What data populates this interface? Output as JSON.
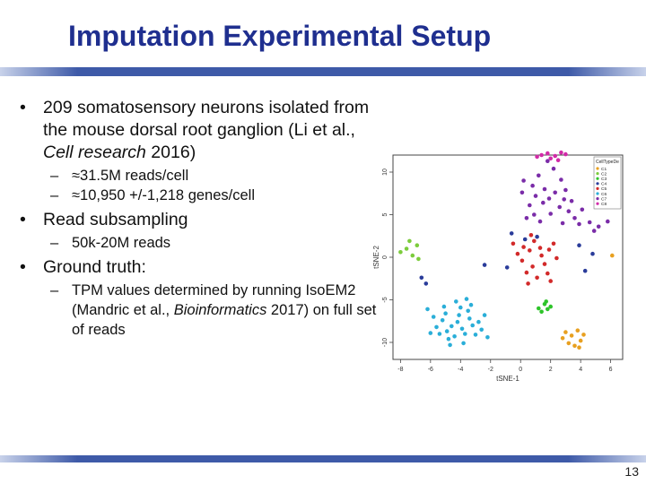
{
  "slide": {
    "title": "Imputation Experimental Setup",
    "page_number": "13"
  },
  "bullets": [
    {
      "text_parts": [
        "209 somatosensory neurons isolated from the mouse dorsal root ganglion (Li et al., ",
        "Cell research",
        " 2016)"
      ],
      "sub": [
        "≈31.5M reads/cell",
        "≈10,950 +/-1,218 genes/cell"
      ]
    },
    {
      "text_parts": [
        "Read subsampling"
      ],
      "sub": [
        "50k-20M reads"
      ]
    },
    {
      "text_parts": [
        "Ground truth:"
      ],
      "sub_parts": [
        "TPM values determined by running IsoEM2 (Mandric et al., ",
        "Bioinformatics",
        " 2017) on full set of reads"
      ]
    }
  ],
  "chart_data": {
    "type": "scatter",
    "xlabel": "tSNE-1",
    "ylabel": "tSNE-2",
    "xlim": [
      -8.5,
      6.8
    ],
    "ylim": [
      -12,
      12
    ],
    "xticks": [
      "-8",
      "-6",
      "-4",
      "-2",
      "0",
      "2",
      "4",
      "6"
    ],
    "yticks": [
      "10",
      "5",
      "0",
      "-5",
      "-10"
    ],
    "legend_title": "CellTypeDe",
    "legend_position": "top-right",
    "series": [
      {
        "name": "C1",
        "color": "#e8a020",
        "points": [
          [
            3.4,
            -9.2
          ],
          [
            3.8,
            -8.6
          ],
          [
            4.0,
            -9.8
          ],
          [
            3.2,
            -10.1
          ],
          [
            2.8,
            -9.5
          ],
          [
            3.6,
            -10.4
          ],
          [
            4.2,
            -9.1
          ],
          [
            3.0,
            -8.8
          ],
          [
            3.9,
            -10.6
          ],
          [
            6.1,
            0.2
          ]
        ]
      },
      {
        "name": "C2",
        "color": "#7ccc3c",
        "points": [
          [
            -7.6,
            1.0
          ],
          [
            -7.2,
            0.2
          ],
          [
            -6.9,
            1.4
          ],
          [
            -8.0,
            0.6
          ],
          [
            -7.4,
            1.9
          ],
          [
            -6.8,
            -0.2
          ]
        ]
      },
      {
        "name": "C3",
        "color": "#2ec42a",
        "points": [
          [
            1.6,
            -5.5
          ],
          [
            1.8,
            -6.1
          ],
          [
            1.4,
            -6.4
          ],
          [
            2.0,
            -5.8
          ],
          [
            1.7,
            -5.2
          ],
          [
            1.2,
            -6.0
          ]
        ]
      },
      {
        "name": "C4",
        "color": "#2a3c9a",
        "points": [
          [
            -0.6,
            2.8
          ],
          [
            -0.9,
            -1.2
          ],
          [
            -2.4,
            -0.9
          ],
          [
            3.9,
            1.4
          ],
          [
            4.3,
            -1.6
          ],
          [
            4.8,
            0.4
          ],
          [
            0.3,
            2.1
          ],
          [
            1.1,
            2.4
          ],
          [
            -6.3,
            -3.1
          ],
          [
            -6.6,
            -2.4
          ]
        ]
      },
      {
        "name": "C5",
        "color": "#d22a2a",
        "points": [
          [
            0.2,
            1.2
          ],
          [
            0.6,
            0.8
          ],
          [
            0.9,
            1.9
          ],
          [
            1.4,
            0.2
          ],
          [
            0.1,
            -0.4
          ],
          [
            0.8,
            -1.1
          ],
          [
            1.6,
            -0.8
          ],
          [
            1.9,
            0.9
          ],
          [
            0.4,
            -1.8
          ],
          [
            -0.2,
            0.4
          ],
          [
            1.1,
            -2.4
          ],
          [
            1.8,
            -1.9
          ],
          [
            2.2,
            1.6
          ],
          [
            2.4,
            -0.1
          ],
          [
            0.7,
            2.6
          ],
          [
            -0.5,
            1.6
          ],
          [
            1.3,
            1.1
          ],
          [
            2.0,
            -2.8
          ],
          [
            0.5,
            -3.1
          ]
        ]
      },
      {
        "name": "C6",
        "color": "#2aaed8",
        "points": [
          [
            -4.2,
            -7.6
          ],
          [
            -3.9,
            -8.4
          ],
          [
            -4.6,
            -8.1
          ],
          [
            -3.4,
            -7.2
          ],
          [
            -5.2,
            -7.4
          ],
          [
            -4.1,
            -6.8
          ],
          [
            -3.7,
            -9.0
          ],
          [
            -4.9,
            -8.7
          ],
          [
            -5.6,
            -8.2
          ],
          [
            -3.2,
            -8.0
          ],
          [
            -4.4,
            -9.3
          ],
          [
            -2.8,
            -7.6
          ],
          [
            -5.0,
            -6.6
          ],
          [
            -3.5,
            -6.3
          ],
          [
            -4.8,
            -9.6
          ],
          [
            -3.0,
            -9.1
          ],
          [
            -5.8,
            -7.0
          ],
          [
            -2.6,
            -8.5
          ],
          [
            -4.0,
            -5.9
          ],
          [
            -5.4,
            -9.0
          ],
          [
            -3.8,
            -10.1
          ],
          [
            -6.2,
            -6.1
          ],
          [
            -2.4,
            -6.8
          ],
          [
            -4.3,
            -5.2
          ],
          [
            -6.0,
            -8.9
          ],
          [
            -3.3,
            -5.6
          ],
          [
            -5.1,
            -5.8
          ],
          [
            -2.2,
            -9.4
          ],
          [
            -4.7,
            -10.3
          ],
          [
            -3.6,
            -4.9
          ]
        ]
      },
      {
        "name": "C7",
        "color": "#7a2ca8",
        "points": [
          [
            1.8,
            11.3
          ],
          [
            2.2,
            10.4
          ],
          [
            1.2,
            9.6
          ],
          [
            2.7,
            9.1
          ],
          [
            0.8,
            8.4
          ],
          [
            1.6,
            8.0
          ],
          [
            2.3,
            7.6
          ],
          [
            3.0,
            7.9
          ],
          [
            1.0,
            7.2
          ],
          [
            0.2,
            9.0
          ],
          [
            2.9,
            6.8
          ],
          [
            1.5,
            6.4
          ],
          [
            2.6,
            5.9
          ],
          [
            0.6,
            6.1
          ],
          [
            3.2,
            5.4
          ],
          [
            2.0,
            5.1
          ],
          [
            0.9,
            5.0
          ],
          [
            3.6,
            4.6
          ],
          [
            1.3,
            4.2
          ],
          [
            0.1,
            7.6
          ],
          [
            2.8,
            4.0
          ],
          [
            4.1,
            5.6
          ],
          [
            3.4,
            6.6
          ],
          [
            0.4,
            4.6
          ],
          [
            3.9,
            3.9
          ],
          [
            1.9,
            6.9
          ],
          [
            4.6,
            4.1
          ],
          [
            5.2,
            3.6
          ],
          [
            5.8,
            4.2
          ],
          [
            4.9,
            3.1
          ]
        ]
      },
      {
        "name": "C8",
        "color": "#d22aa8",
        "points": [
          [
            1.4,
            12.0
          ],
          [
            1.8,
            12.2
          ],
          [
            2.3,
            11.9
          ],
          [
            2.7,
            12.3
          ],
          [
            2.0,
            11.6
          ],
          [
            1.1,
            11.8
          ],
          [
            2.5,
            11.4
          ],
          [
            3.0,
            12.1
          ]
        ]
      }
    ]
  }
}
